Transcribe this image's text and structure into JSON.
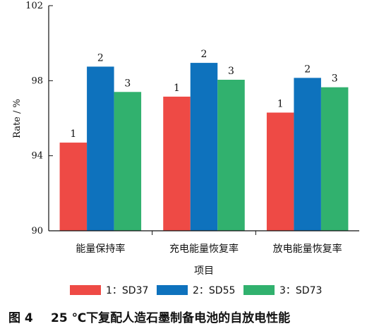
{
  "chart_data": {
    "type": "bar",
    "xlabel": "项目",
    "ylabel": "Rate / %",
    "ylim": [
      90,
      102
    ],
    "yticks": [
      90,
      94,
      98,
      102
    ],
    "categories": [
      "能量保持率",
      "充电能量恢复率",
      "放电能量恢复率"
    ],
    "series": [
      {
        "name": "1：SD37",
        "label": "1",
        "color": "#ee4a45",
        "values": [
          94.7,
          97.15,
          96.3
        ]
      },
      {
        "name": "2：SD55",
        "label": "2",
        "color": "#0e72bd",
        "values": [
          98.75,
          98.95,
          98.15
        ]
      },
      {
        "name": "3：SD73",
        "label": "3",
        "color": "#31b16e",
        "values": [
          97.4,
          98.05,
          97.65
        ]
      }
    ],
    "legend_position": "bottom"
  },
  "caption": {
    "number": "图 4",
    "title": "25 ℃下复配人造石墨制备电池的自放电性能"
  }
}
